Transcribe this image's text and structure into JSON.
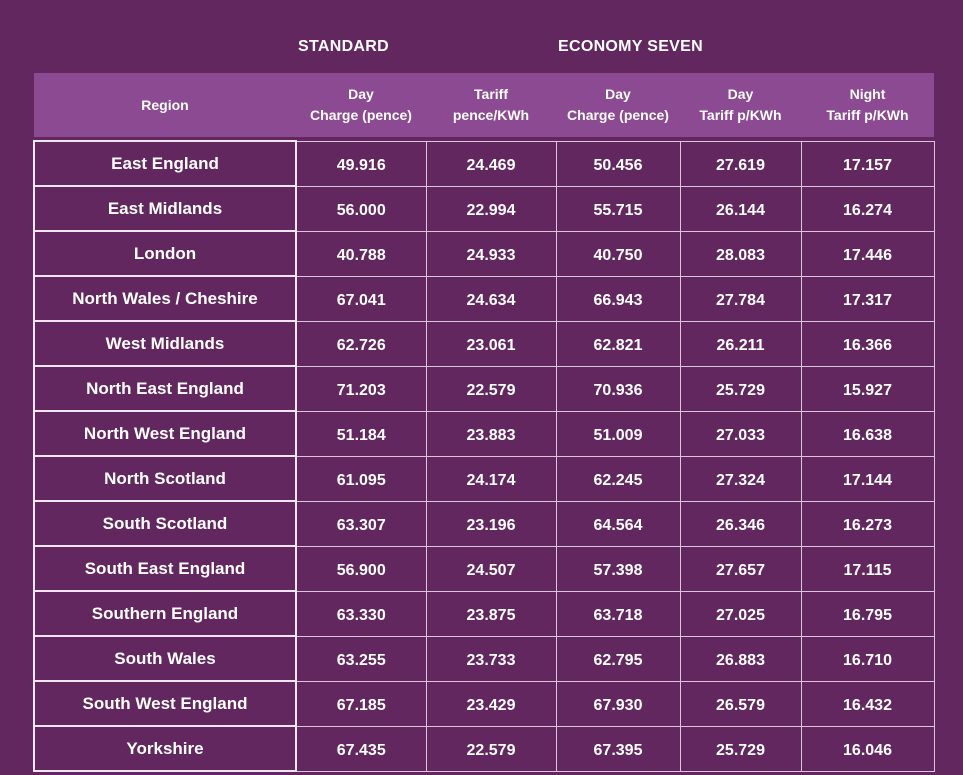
{
  "groups": {
    "standard": "STANDARD",
    "economy_seven": "ECONOMY SEVEN"
  },
  "headers": {
    "region": "Region",
    "std_day_1": "Day",
    "std_day_2": "Charge (pence)",
    "std_tariff_1": "Tariff",
    "std_tariff_2": "pence/KWh",
    "e7_day_1": "Day",
    "e7_day_2": "Charge (pence)",
    "e7_daytariff_1": "Day",
    "e7_daytariff_2": "Tariff p/KWh",
    "e7_night_1": "Night",
    "e7_night_2": "Tariff p/KWh"
  },
  "rows": [
    {
      "region": "East England",
      "std_day": "49.916",
      "std_tariff": "24.469",
      "e7_day": "50.456",
      "e7_day_tariff": "27.619",
      "e7_night_tariff": "17.157"
    },
    {
      "region": "East Midlands",
      "std_day": "56.000",
      "std_tariff": "22.994",
      "e7_day": "55.715",
      "e7_day_tariff": "26.144",
      "e7_night_tariff": "16.274"
    },
    {
      "region": "London",
      "std_day": "40.788",
      "std_tariff": "24.933",
      "e7_day": "40.750",
      "e7_day_tariff": "28.083",
      "e7_night_tariff": "17.446"
    },
    {
      "region": "North Wales / Cheshire",
      "std_day": "67.041",
      "std_tariff": "24.634",
      "e7_day": "66.943",
      "e7_day_tariff": "27.784",
      "e7_night_tariff": "17.317"
    },
    {
      "region": "West Midlands",
      "std_day": "62.726",
      "std_tariff": "23.061",
      "e7_day": "62.821",
      "e7_day_tariff": "26.211",
      "e7_night_tariff": "16.366"
    },
    {
      "region": "North East England",
      "std_day": "71.203",
      "std_tariff": "22.579",
      "e7_day": "70.936",
      "e7_day_tariff": "25.729",
      "e7_night_tariff": "15.927"
    },
    {
      "region": "North West England",
      "std_day": "51.184",
      "std_tariff": "23.883",
      "e7_day": "51.009",
      "e7_day_tariff": "27.033",
      "e7_night_tariff": "16.638"
    },
    {
      "region": "North Scotland",
      "std_day": "61.095",
      "std_tariff": "24.174",
      "e7_day": "62.245",
      "e7_day_tariff": "27.324",
      "e7_night_tariff": "17.144"
    },
    {
      "region": "South Scotland",
      "std_day": "63.307",
      "std_tariff": "23.196",
      "e7_day": "64.564",
      "e7_day_tariff": "26.346",
      "e7_night_tariff": "16.273"
    },
    {
      "region": "South East England",
      "std_day": "56.900",
      "std_tariff": "24.507",
      "e7_day": "57.398",
      "e7_day_tariff": "27.657",
      "e7_night_tariff": "17.115"
    },
    {
      "region": "Southern England",
      "std_day": "63.330",
      "std_tariff": "23.875",
      "e7_day": "63.718",
      "e7_day_tariff": "27.025",
      "e7_night_tariff": "16.795"
    },
    {
      "region": "South Wales",
      "std_day": "63.255",
      "std_tariff": "23.733",
      "e7_day": "62.795",
      "e7_day_tariff": "26.883",
      "e7_night_tariff": "16.710"
    },
    {
      "region": "South West England",
      "std_day": "67.185",
      "std_tariff": "23.429",
      "e7_day": "67.930",
      "e7_day_tariff": "26.579",
      "e7_night_tariff": "16.432"
    },
    {
      "region": "Yorkshire",
      "std_day": "67.435",
      "std_tariff": "22.579",
      "e7_day": "67.395",
      "e7_day_tariff": "25.729",
      "e7_night_tariff": "16.046"
    }
  ],
  "colors": {
    "background": "#62275e",
    "header_background": "#8c4a93",
    "text": "#ffffff",
    "grid_line": "#d9c6dc"
  }
}
